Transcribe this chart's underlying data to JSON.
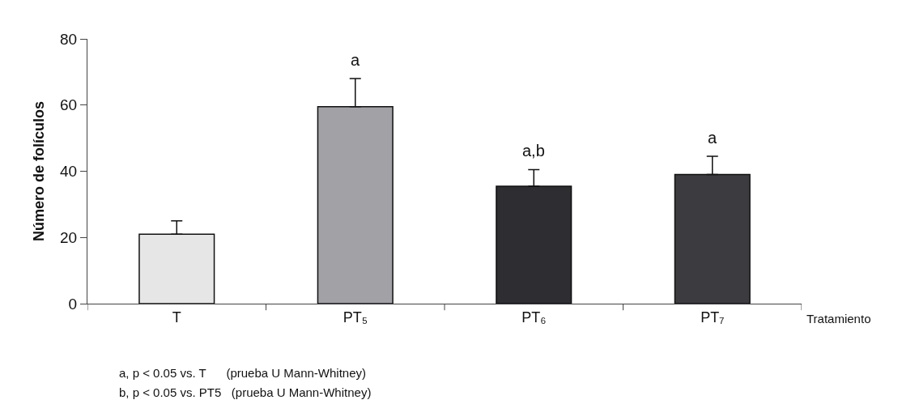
{
  "chart_data": {
    "type": "bar",
    "categories": [
      "T",
      "PT₅",
      "PT₆",
      "PT₇"
    ],
    "values": [
      21,
      59.5,
      35.5,
      39
    ],
    "colors": [
      "#e6e6e6",
      "#a2a2a6",
      "#2e2e32",
      "#3c3c40"
    ],
    "errors": [
      [
        21,
        25
      ],
      [
        59.5,
        68
      ],
      [
        35.5,
        40.5
      ],
      [
        39,
        44.5
      ]
    ],
    "ylabel": "Número de folículos",
    "xlabel": "Tratamiento",
    "ylim": [
      0,
      80
    ],
    "yticks": [
      0,
      20,
      40,
      60,
      80
    ],
    "grid": false,
    "annotations": [
      {
        "text": "a",
        "x": "PT₅",
        "y": 68
      },
      {
        "text": "a,b",
        "x": "PT₆",
        "y": 40.5
      },
      {
        "text": "a",
        "x": "PT₇",
        "y": 44.5
      },
      "a, p < 0.05 vs. T      (prueba U Mann-Whitney)",
      "b, p < 0.05 vs. PT5   (prueba U Mann-Whitney)"
    ]
  }
}
